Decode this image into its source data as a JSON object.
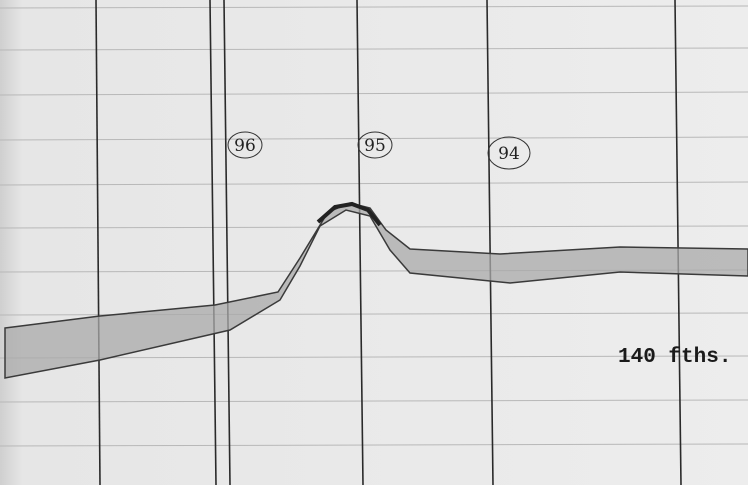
{
  "annotations": {
    "fix_labels": [
      "96",
      "95",
      "94"
    ],
    "depth_label": "140 fths."
  }
}
